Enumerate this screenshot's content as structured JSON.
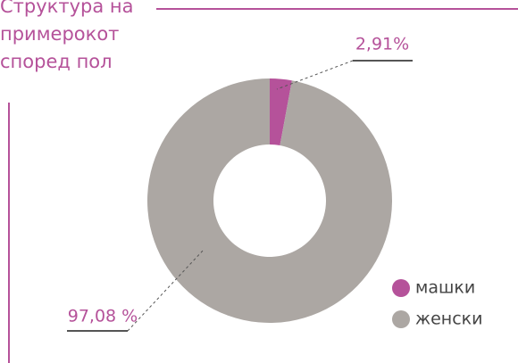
{
  "chart_data": {
    "type": "pie",
    "donut": true,
    "title": [
      "Структура на",
      "примерокот",
      "според пол"
    ],
    "categories": [
      "машки",
      "женски"
    ],
    "values": [
      2.91,
      97.08
    ],
    "value_labels": [
      "2,91%",
      "97,08 %"
    ],
    "colors": [
      "#b5529a",
      "#aca7a3"
    ]
  }
}
